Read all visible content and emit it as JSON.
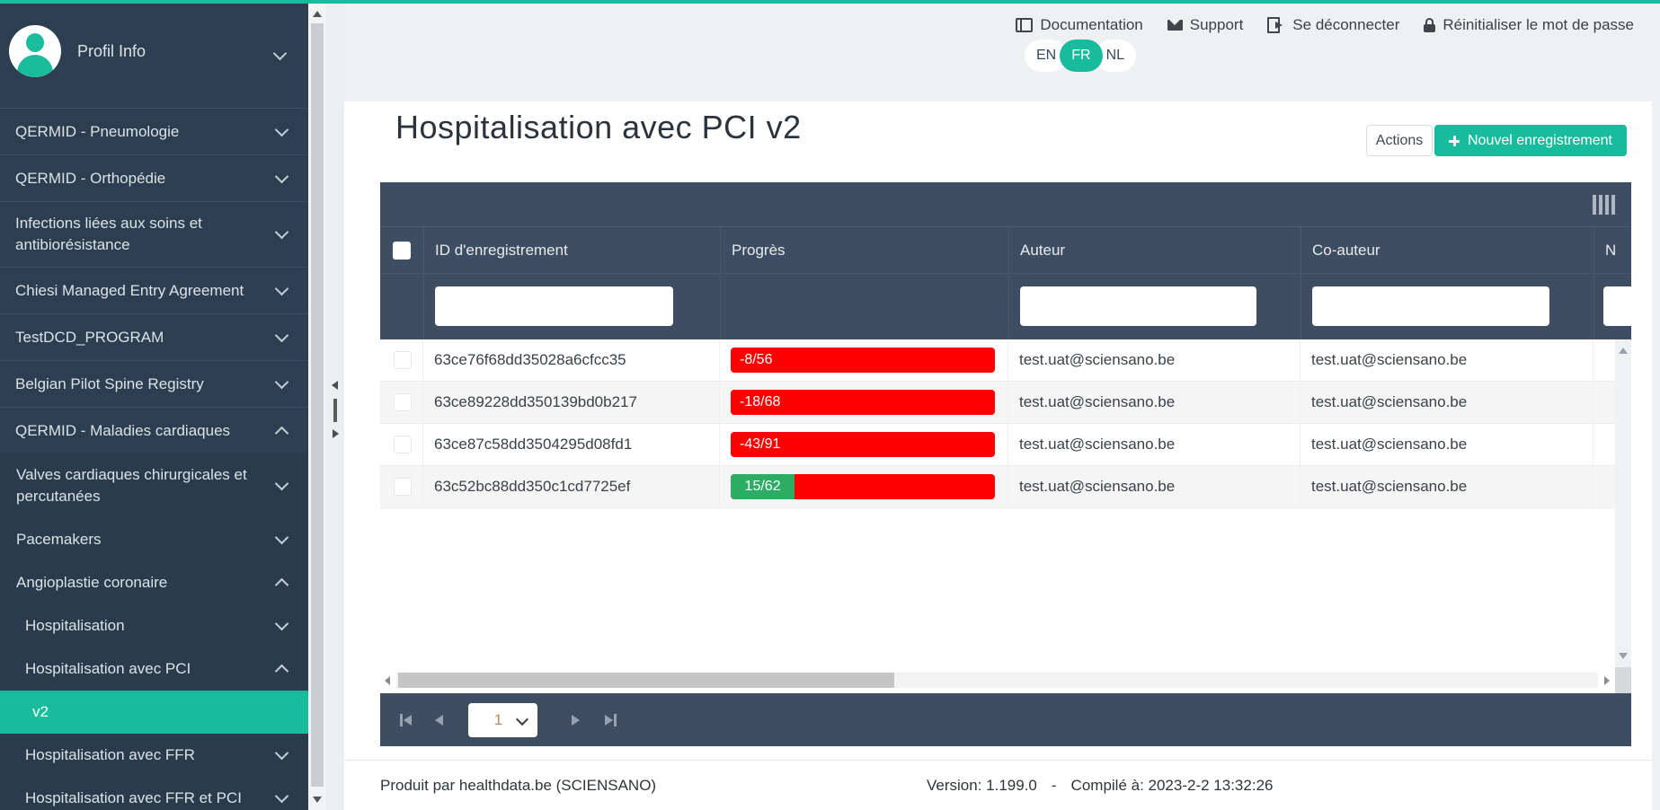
{
  "colors": {
    "accent": "#18bc9c",
    "sidebar_bg": "#2c3e50",
    "table_header_bg": "#3e4d62",
    "progress_red": "#ff0000",
    "progress_green": "#2dad64"
  },
  "topbar": {
    "links": [
      {
        "label": "Documentation",
        "icon": "book-icon"
      },
      {
        "label": "Support",
        "icon": "envelope-icon"
      },
      {
        "label": "Se déconnecter",
        "icon": "sign-out-icon"
      },
      {
        "label": "Réinitialiser le mot de passe",
        "icon": "lock-icon"
      }
    ],
    "languages": [
      {
        "code": "EN",
        "active": false
      },
      {
        "code": "FR",
        "active": true
      },
      {
        "code": "NL",
        "active": false
      }
    ]
  },
  "sidebar": {
    "profile_label": "Profil Info",
    "items": [
      {
        "label": "QERMID - Pneumologie",
        "level": 1,
        "chevron": "down"
      },
      {
        "label": "QERMID - Orthopédie",
        "level": 1,
        "chevron": "down"
      },
      {
        "label": "Infections liées aux soins et antibiorésistance",
        "level": 1,
        "chevron": "down"
      },
      {
        "label": "Chiesi Managed Entry Agreement",
        "level": 1,
        "chevron": "down"
      },
      {
        "label": "TestDCD_PROGRAM",
        "level": 1,
        "chevron": "down"
      },
      {
        "label": "Belgian Pilot Spine Registry",
        "level": 1,
        "chevron": "down"
      },
      {
        "label": "QERMID - Maladies cardiaques",
        "level": 1,
        "chevron": "up"
      },
      {
        "label": "Valves cardiaques chirurgicales et percutanées",
        "level": 2,
        "chevron": "down"
      },
      {
        "label": "Pacemakers",
        "level": 2,
        "chevron": "down"
      },
      {
        "label": "Angioplastie coronaire",
        "level": 2,
        "chevron": "up"
      },
      {
        "label": "Hospitalisation",
        "level": 3,
        "chevron": "down"
      },
      {
        "label": "Hospitalisation avec PCI",
        "level": 3,
        "chevron": "up"
      },
      {
        "label": "v2",
        "level": 4,
        "active": true
      },
      {
        "label": "Hospitalisation avec FFR",
        "level": 3,
        "chevron": "down"
      },
      {
        "label": "Hospitalisation avec FFR et PCI",
        "level": 3,
        "chevron": "down"
      }
    ]
  },
  "page": {
    "title": "Hospitalisation avec PCI v2",
    "actions_label": "Actions",
    "new_record_label": "Nouvel enregistrement"
  },
  "table": {
    "columns": [
      "",
      "ID d'enregistrement",
      "Progrès",
      "Auteur",
      "Co-auteur",
      "N"
    ],
    "filter_inputs": [
      false,
      true,
      false,
      true,
      true,
      true
    ],
    "rows": [
      {
        "id": "63ce76f68dd35028a6cfcc35",
        "progress": {
          "label": "-8/56",
          "completed": -8,
          "total": 56,
          "green_pct": 0
        },
        "author": "test.uat@sciensano.be",
        "coauthor": "test.uat@sciensano.be"
      },
      {
        "id": "63ce89228dd350139bd0b217",
        "progress": {
          "label": "-18/68",
          "completed": -18,
          "total": 68,
          "green_pct": 0
        },
        "author": "test.uat@sciensano.be",
        "coauthor": "test.uat@sciensano.be"
      },
      {
        "id": "63ce87c58dd3504295d08fd1",
        "progress": {
          "label": "-43/91",
          "completed": -43,
          "total": 91,
          "green_pct": 0
        },
        "author": "test.uat@sciensano.be",
        "coauthor": "test.uat@sciensano.be"
      },
      {
        "id": "63c52bc88dd350c1cd7725ef",
        "progress": {
          "label": "15/62",
          "completed": 15,
          "total": 62,
          "green_pct": 24.2
        },
        "author": "test.uat@sciensano.be",
        "coauthor": "test.uat@sciensano.be"
      }
    ],
    "pagination": {
      "page": "1"
    }
  },
  "footer": {
    "produced_by": "Produit par healthdata.be (SCIENSANO)",
    "version": "Version: 1.199.0",
    "separator": "-",
    "compiled": "Compilé à: 2023-2-2 13:32:26"
  }
}
